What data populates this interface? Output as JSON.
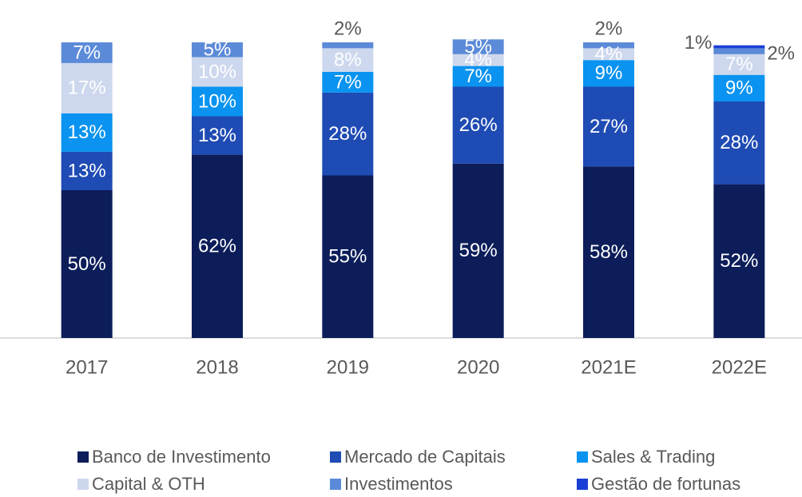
{
  "chart_data": {
    "type": "stacked_bar",
    "categories": [
      "2017",
      "2018",
      "2019",
      "2020",
      "2021E",
      "2022E"
    ],
    "ylim": [
      0,
      100
    ],
    "series": [
      {
        "name": "Banco de Investimento",
        "color": "#0c1d5a",
        "values": [
          50,
          62,
          55,
          59,
          58,
          52
        ],
        "value_labels": [
          "50%",
          "62%",
          "55%",
          "59%",
          "58%",
          "52%"
        ]
      },
      {
        "name": "Mercado de Capitais",
        "color": "#1f4bb4",
        "values": [
          13,
          13,
          28,
          26,
          27,
          28
        ],
        "value_labels": [
          "13%",
          "13%",
          "28%",
          "26%",
          "27%",
          "28%"
        ]
      },
      {
        "name": "Sales & Trading",
        "color": "#0a93f0",
        "values": [
          13,
          10,
          7,
          7,
          9,
          9
        ],
        "value_labels": [
          "13%",
          "10%",
          "7%",
          "7%",
          "9%",
          "9%"
        ]
      },
      {
        "name": "Capital & OTH",
        "color": "#cdd8ee",
        "values": [
          17,
          10,
          8,
          4,
          4,
          7
        ],
        "value_labels": [
          "17%",
          "10%",
          "8%",
          "4%",
          "4%",
          "7%"
        ]
      },
      {
        "name": "Investimentos",
        "color": "#5b8ad8",
        "values": [
          7,
          5,
          2,
          5,
          2,
          2
        ],
        "value_labels": [
          "7%",
          "5%",
          "2%",
          "5%",
          "2%",
          "2%"
        ]
      },
      {
        "name": "Gestão de fortunas",
        "color": "#1a3fd6",
        "values": [
          null,
          null,
          null,
          null,
          null,
          1
        ],
        "value_labels": [
          null,
          null,
          null,
          null,
          null,
          "1%"
        ]
      }
    ]
  }
}
